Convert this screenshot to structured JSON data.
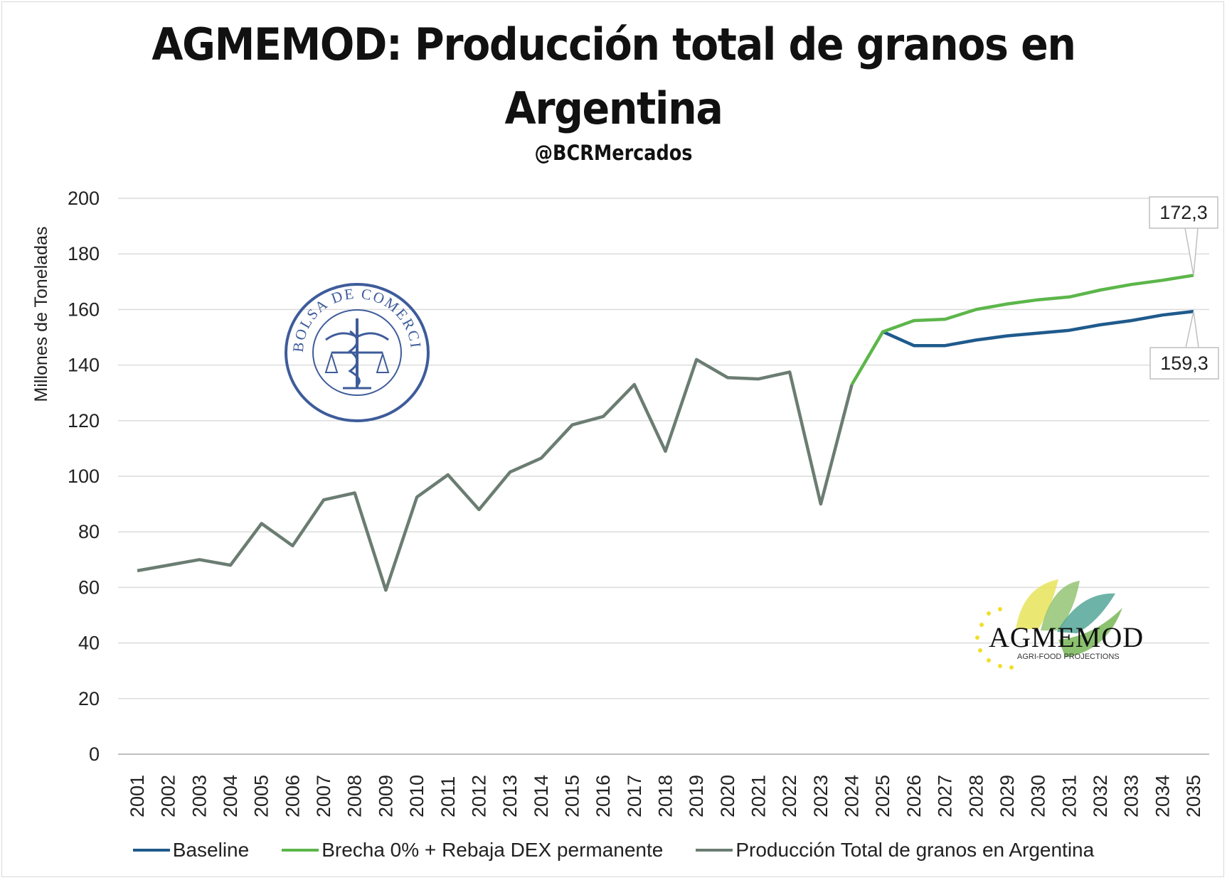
{
  "chart_data": {
    "type": "line",
    "title": "AGMEMOD: Producción total de granos en Argentina",
    "subtitle": "@BCRMercados",
    "ylabel": "Millones de Toneladas",
    "xlabel": "",
    "ylim": [
      0,
      200
    ],
    "yticks": [
      "0",
      "20",
      "40",
      "60",
      "80",
      "100",
      "120",
      "140",
      "160",
      "180",
      "200"
    ],
    "grid": true,
    "legend_position": "bottom",
    "x": [
      "2001",
      "2002",
      "2003",
      "2004",
      "2005",
      "2006",
      "2007",
      "2008",
      "2009",
      "2010",
      "2011",
      "2012",
      "2013",
      "2014",
      "2015",
      "2016",
      "2017",
      "2018",
      "2019",
      "2020",
      "2021",
      "2022",
      "2023",
      "2024",
      "2025",
      "2026",
      "2027",
      "2028",
      "2029",
      "2030",
      "2031",
      "2032",
      "2033",
      "2034",
      "2035"
    ],
    "series": [
      {
        "name": "Baseline",
        "color": "#1f5a8c",
        "values": [
          null,
          null,
          null,
          null,
          null,
          null,
          null,
          null,
          null,
          null,
          null,
          null,
          null,
          null,
          null,
          null,
          null,
          null,
          null,
          null,
          null,
          null,
          null,
          null,
          152,
          147,
          147,
          149,
          150.5,
          151.5,
          152.5,
          154.5,
          156,
          158,
          159.3
        ]
      },
      {
        "name": "Brecha 0% + Rebaja DEX permanente",
        "color": "#5cb64a",
        "values": [
          null,
          null,
          null,
          null,
          null,
          null,
          null,
          null,
          null,
          null,
          null,
          null,
          null,
          null,
          null,
          null,
          null,
          null,
          null,
          null,
          null,
          null,
          null,
          133,
          152,
          156,
          156.5,
          160,
          162,
          163.5,
          164.5,
          167,
          169,
          170.5,
          172.3
        ]
      },
      {
        "name": "Producción Total de granos en Argentina",
        "color": "#6b7d72",
        "values": [
          66,
          68,
          70,
          68,
          83,
          75,
          91.5,
          94,
          59,
          92.5,
          100.5,
          88,
          101.5,
          106.5,
          118.5,
          121.5,
          133,
          109,
          142,
          135.5,
          135,
          137.5,
          90,
          133,
          null,
          null,
          null,
          null,
          null,
          null,
          null,
          null,
          null,
          null,
          null
        ]
      }
    ],
    "annotations": [
      {
        "text": "172,3",
        "x": "2035",
        "y": 172.3,
        "series": "Brecha 0% + Rebaja DEX permanente"
      },
      {
        "text": "159,3",
        "x": "2035",
        "y": 159.3,
        "series": "Baseline"
      }
    ]
  },
  "watermarks": {
    "seal_text": "BOLSA DE COMERCIO DE ROSARIO",
    "agmemod_logo": "AGMEMOD",
    "agmemod_tagline": "AGRI-FOOD PROJECTIONS"
  }
}
